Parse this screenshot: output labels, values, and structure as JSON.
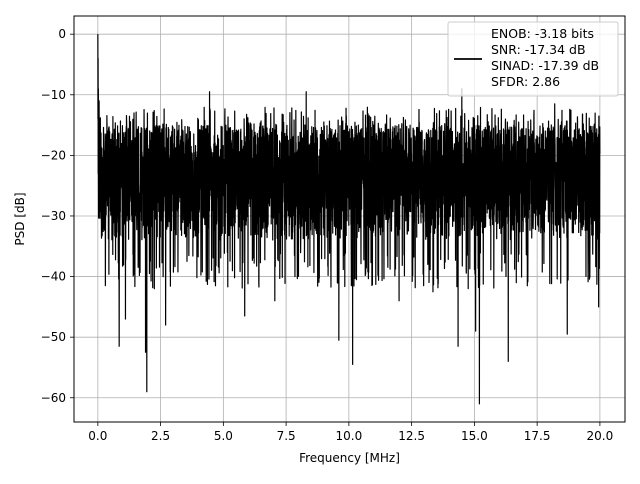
{
  "chart_data": {
    "type": "line",
    "title": "",
    "xlabel": "Frequency [MHz]",
    "ylabel": "PSD [dB]",
    "xlim": [
      -0.95,
      21.0
    ],
    "ylim": [
      -64.0,
      3.0
    ],
    "xticks": [
      0.0,
      2.5,
      5.0,
      7.5,
      10.0,
      12.5,
      15.0,
      17.5,
      20.0
    ],
    "xtick_labels": [
      "0.0",
      "2.5",
      "5.0",
      "7.5",
      "10.0",
      "12.5",
      "15.0",
      "17.5",
      "20.0"
    ],
    "yticks": [
      0,
      -10,
      -20,
      -30,
      -40,
      -50,
      -60
    ],
    "ytick_labels": [
      "0",
      "−10",
      "−20",
      "−30",
      "−40",
      "−50",
      "−60"
    ],
    "grid": true,
    "legend_position": "top-right",
    "series_color": "#000000",
    "legend_lines": [
      "ENOB: -3.18 bits",
      "SNR: -17.34 dB",
      "SINAD: -17.39 dB",
      "SFDR: 2.86"
    ],
    "series": [
      {
        "name": "ENOB: -3.18 bits",
        "x_start": 0.0,
        "x_end": 20.0,
        "noise_band_y": [
          -34.0,
          -15.0
        ],
        "notable_points": [
          {
            "x": 0.0,
            "y": 0.0
          },
          {
            "x": 0.05,
            "y": -11.0
          },
          {
            "x": 0.3,
            "y": -41.5
          },
          {
            "x": 0.85,
            "y": -51.5
          },
          {
            "x": 1.1,
            "y": -47.0
          },
          {
            "x": 1.9,
            "y": -52.5
          },
          {
            "x": 1.95,
            "y": -59.0
          },
          {
            "x": 2.25,
            "y": -42.0
          },
          {
            "x": 2.7,
            "y": -48.0
          },
          {
            "x": 5.85,
            "y": -46.5
          },
          {
            "x": 7.05,
            "y": -44.0
          },
          {
            "x": 9.6,
            "y": -50.5
          },
          {
            "x": 10.15,
            "y": -54.5
          },
          {
            "x": 10.1,
            "y": -41.5
          },
          {
            "x": 12.0,
            "y": -44.0
          },
          {
            "x": 13.35,
            "y": -42.5
          },
          {
            "x": 14.35,
            "y": -51.5
          },
          {
            "x": 15.05,
            "y": -49.0
          },
          {
            "x": 15.2,
            "y": -61.0
          },
          {
            "x": 16.35,
            "y": -54.0
          },
          {
            "x": 18.7,
            "y": -49.5
          },
          {
            "x": 19.95,
            "y": -45.0
          },
          {
            "x": 4.45,
            "y": -9.5
          },
          {
            "x": 8.3,
            "y": -9.5
          },
          {
            "x": 14.5,
            "y": -9.0
          },
          {
            "x": 18.2,
            "y": -11.5
          }
        ]
      }
    ]
  }
}
